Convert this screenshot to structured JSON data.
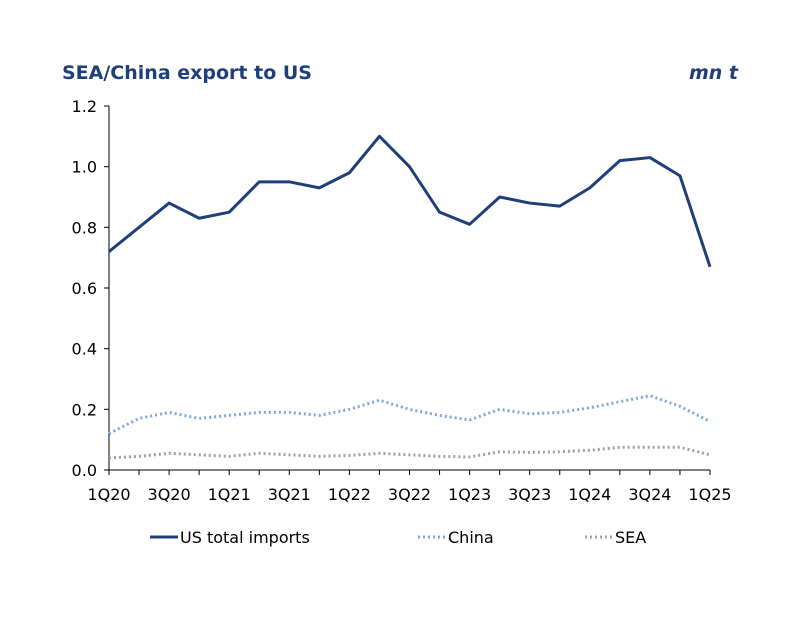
{
  "chart_data": {
    "type": "line",
    "title": "SEA/China export to US",
    "unit_label": "mn t",
    "xlabel": "",
    "ylabel": "mn t",
    "ylim": [
      0,
      1.2
    ],
    "yticks": [
      "0.0",
      "0.2",
      "0.4",
      "0.6",
      "0.8",
      "1.0",
      "1.2"
    ],
    "x": [
      "1Q20",
      "2Q20",
      "3Q20",
      "4Q20",
      "1Q21",
      "2Q21",
      "3Q21",
      "4Q21",
      "1Q22",
      "2Q22",
      "3Q22",
      "4Q22",
      "1Q23",
      "2Q23",
      "3Q23",
      "4Q23",
      "1Q24",
      "2Q24",
      "3Q24",
      "4Q24",
      "1Q25"
    ],
    "xtick_labels": [
      "1Q20",
      "3Q20",
      "1Q21",
      "3Q21",
      "1Q22",
      "3Q22",
      "1Q23",
      "3Q23",
      "1Q24",
      "3Q24",
      "1Q25"
    ],
    "grid": false,
    "legend_position": "bottom",
    "series": [
      {
        "name": "US total imports",
        "color": "#1f3f7a",
        "style": "solid",
        "values": [
          0.72,
          0.8,
          0.88,
          0.83,
          0.85,
          0.95,
          0.95,
          0.93,
          0.98,
          1.1,
          1.0,
          0.85,
          0.81,
          0.9,
          0.88,
          0.87,
          0.93,
          1.02,
          1.03,
          0.97,
          0.67
        ]
      },
      {
        "name": "China",
        "color": "#7fa7dd",
        "style": "dotted",
        "values": [
          0.12,
          0.17,
          0.19,
          0.17,
          0.18,
          0.19,
          0.19,
          0.18,
          0.2,
          0.23,
          0.2,
          0.18,
          0.165,
          0.2,
          0.185,
          0.19,
          0.205,
          0.225,
          0.245,
          0.21,
          0.16
        ]
      },
      {
        "name": "SEA",
        "color": "#a0a0a0",
        "style": "dotted",
        "values": [
          0.04,
          0.045,
          0.055,
          0.05,
          0.045,
          0.055,
          0.05,
          0.045,
          0.048,
          0.055,
          0.05,
          0.045,
          0.043,
          0.06,
          0.058,
          0.06,
          0.065,
          0.075,
          0.075,
          0.075,
          0.05
        ]
      }
    ]
  }
}
